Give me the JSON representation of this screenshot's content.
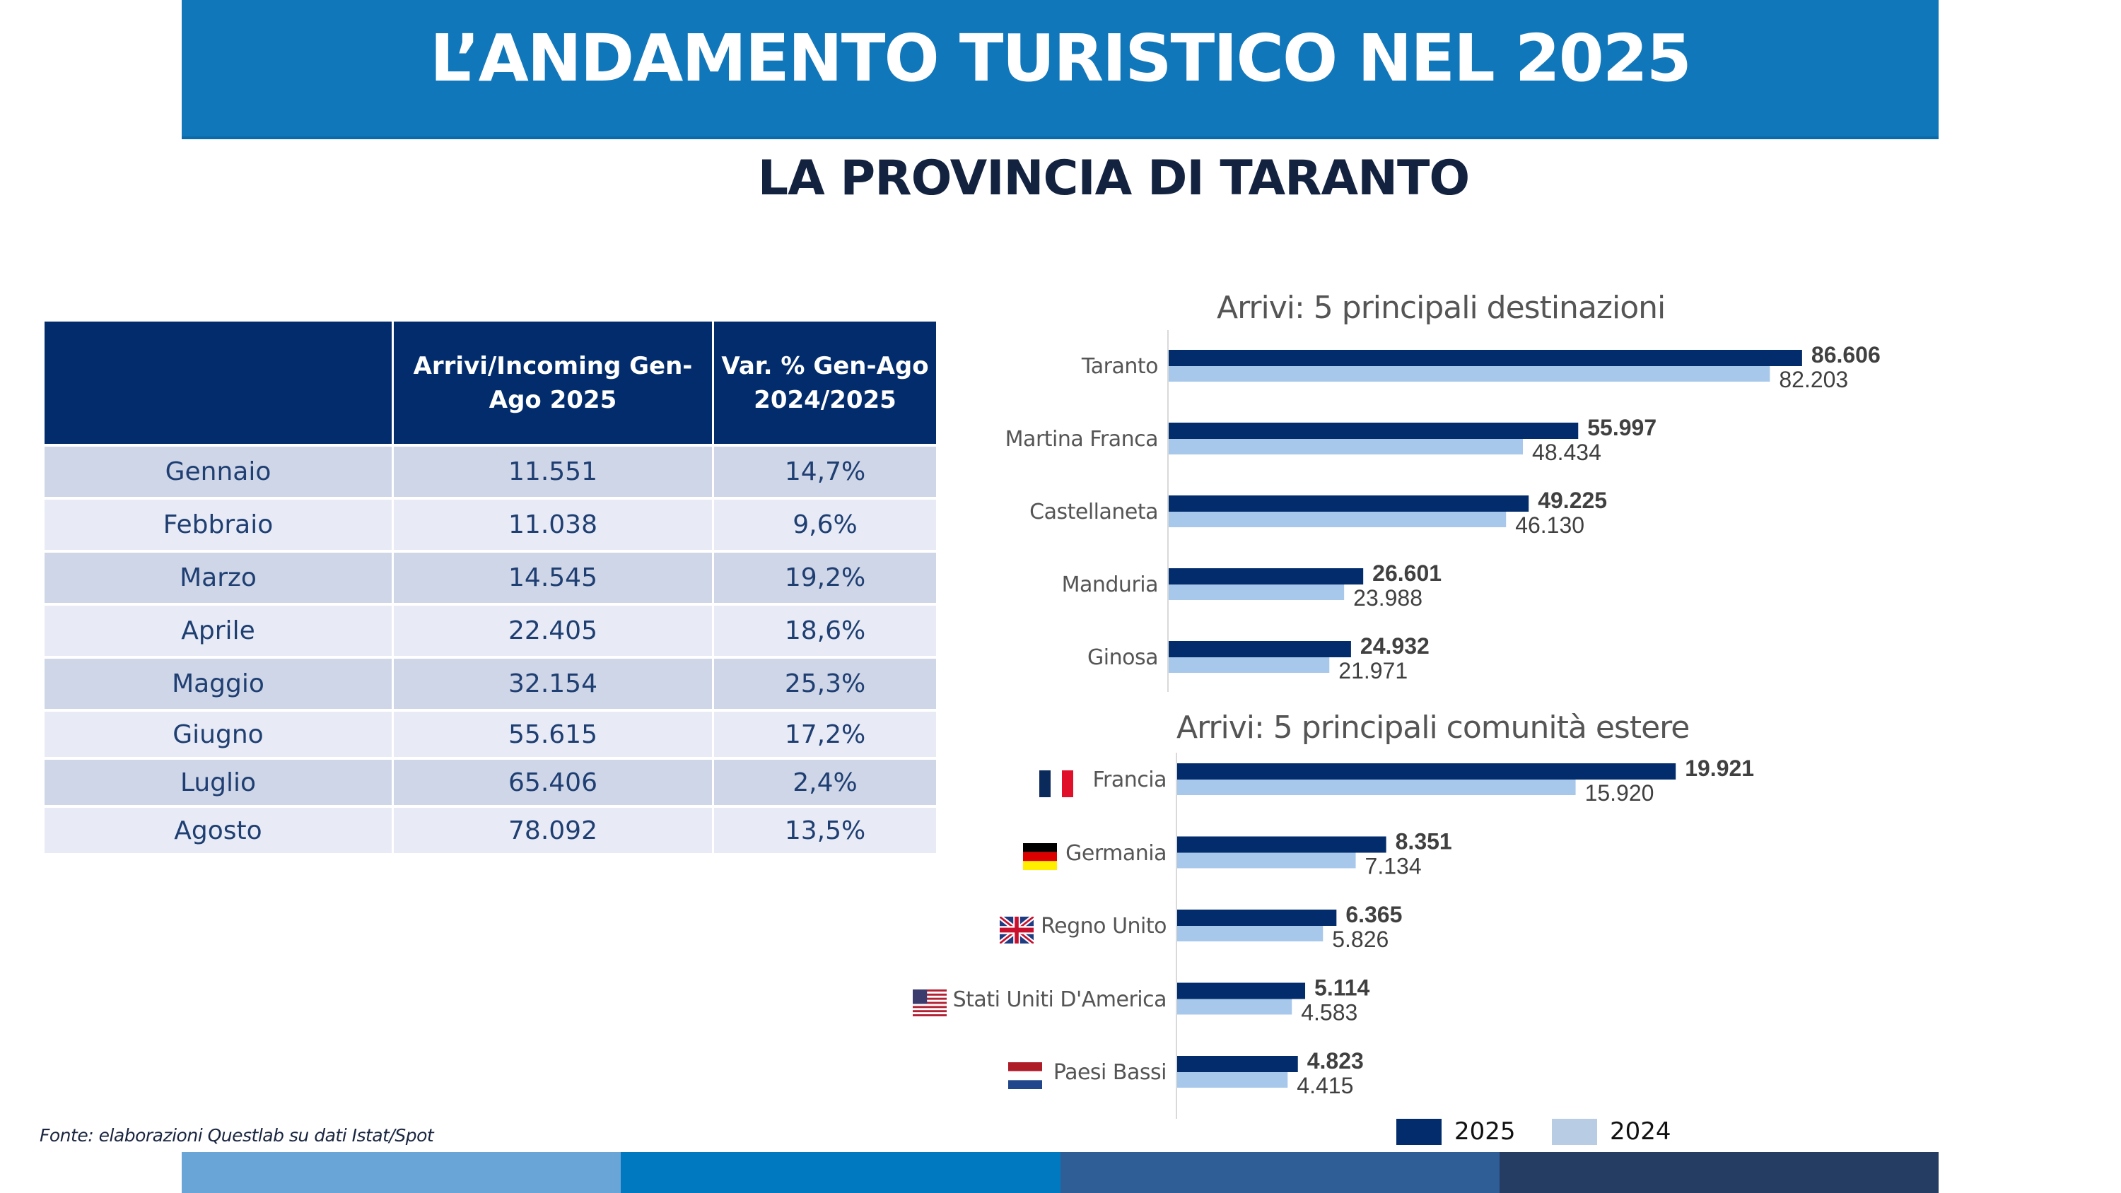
{
  "header": {
    "title": "L’ANDAMENTO TURISTICO NEL 2025",
    "subtitle": "LA PROVINCIA DI TARANTO"
  },
  "table": {
    "columns": [
      "",
      "Arrivi/Incoming Gen-Ago 2025",
      "Var. % Gen-Ago 2024/2025"
    ],
    "rows": [
      {
        "month": "Gennaio",
        "arrivi": "11.551",
        "var": "14,7%"
      },
      {
        "month": "Febbraio",
        "arrivi": "11.038",
        "var": "9,6%"
      },
      {
        "month": "Marzo",
        "arrivi": "14.545",
        "var": "19,2%"
      },
      {
        "month": "Aprile",
        "arrivi": "22.405",
        "var": "18,6%"
      },
      {
        "month": "Maggio",
        "arrivi": "32.154",
        "var": "25,3%"
      },
      {
        "month": "Giugno",
        "arrivi": "55.615",
        "var": "17,2%"
      },
      {
        "month": "Luglio",
        "arrivi": "65.406",
        "var": "2,4%"
      },
      {
        "month": "Agosto",
        "arrivi": "78.092",
        "var": "13,5%"
      }
    ]
  },
  "source_note": "Fonte: elaborazioni Questlab su dati Istat/Spot",
  "colors": {
    "series_2025": "#022c6b",
    "series_2024": "#a7c8ea",
    "legend_2024": "#b8cce4",
    "banner": "#1177bb",
    "bottom_bar": [
      "#6aa5d8",
      "#0079c1",
      "#2f5d96",
      "#253d63"
    ]
  },
  "legend": [
    {
      "label": "2025",
      "color": "#022c6b"
    },
    {
      "label": "2024",
      "color": "#b8cce4"
    }
  ],
  "chart_data": [
    {
      "type": "bar",
      "orientation": "horizontal",
      "title": "Arrivi: 5 principali destinazioni",
      "categories": [
        "Taranto",
        "Martina Franca",
        "Castellaneta",
        "Manduria",
        "Ginosa"
      ],
      "series": [
        {
          "name": "2025",
          "values": [
            86606,
            55997,
            49225,
            26601,
            24932
          ],
          "labels": [
            "86.606",
            "55.997",
            "49.225",
            "26.601",
            "24.932"
          ]
        },
        {
          "name": "2024",
          "values": [
            82203,
            48434,
            46130,
            23988,
            21971
          ],
          "labels": [
            "82.203",
            "48.434",
            "46.130",
            "23.988",
            "21.971"
          ]
        }
      ],
      "xlim": [
        0,
        90000
      ],
      "grid": false,
      "legend": "bottom"
    },
    {
      "type": "bar",
      "orientation": "horizontal",
      "title": "Arrivi: 5 principali comunità estere",
      "categories": [
        "Francia",
        "Germania",
        "Regno Unito",
        "Stati Uniti D'America",
        "Paesi Bassi"
      ],
      "flags": [
        "france-flag",
        "germany-flag",
        "uk-flag",
        "usa-flag",
        "netherlands-flag"
      ],
      "series": [
        {
          "name": "2025",
          "values": [
            19921,
            8351,
            6365,
            5114,
            4823
          ],
          "labels": [
            "19.921",
            "8.351",
            "6.365",
            "5.114",
            "4.823"
          ]
        },
        {
          "name": "2024",
          "values": [
            15920,
            7134,
            5826,
            4583,
            4415
          ],
          "labels": [
            "15.920",
            "7.134",
            "5.826",
            "4.583",
            "4.415"
          ]
        }
      ],
      "xlim": [
        0,
        20000
      ],
      "grid": false,
      "legend": "bottom"
    }
  ]
}
